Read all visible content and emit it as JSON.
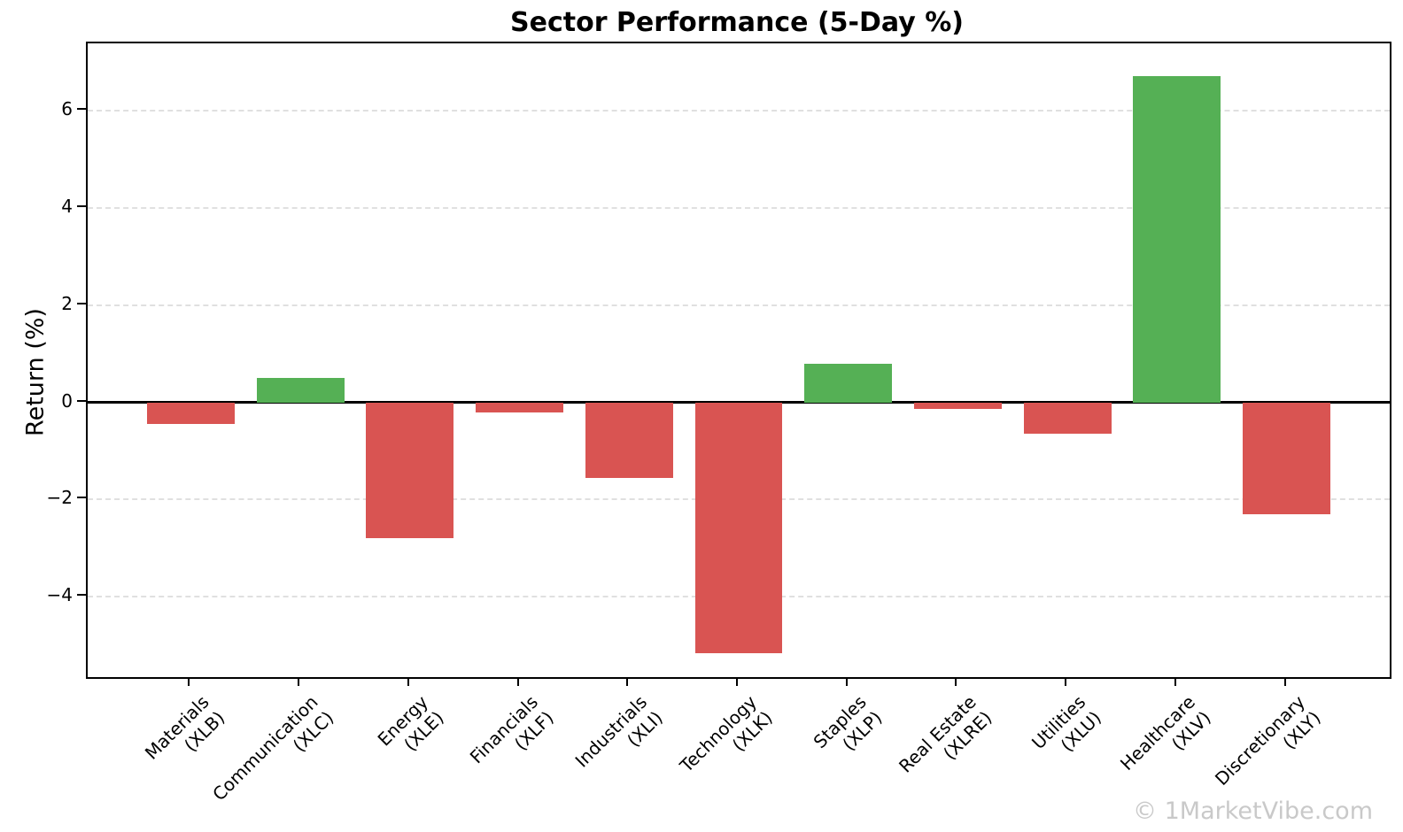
{
  "title": "Sector Performance (5-Day %)",
  "watermark": "© 1MarketVibe.com",
  "y_axis": {
    "label": "Return (%)"
  },
  "chart_data": {
    "type": "bar",
    "title": "Sector Performance (5-Day %)",
    "xlabel": "",
    "ylabel": "Return (%)",
    "categories": [
      {
        "name": "Materials",
        "ticker": "(XLB)"
      },
      {
        "name": "Communication",
        "ticker": "(XLC)"
      },
      {
        "name": "Energy",
        "ticker": "(XLE)"
      },
      {
        "name": "Financials",
        "ticker": "(XLF)"
      },
      {
        "name": "Industrials",
        "ticker": "(XLI)"
      },
      {
        "name": "Technology",
        "ticker": "(XLK)"
      },
      {
        "name": "Staples",
        "ticker": "(XLP)"
      },
      {
        "name": "Real Estate",
        "ticker": "(XLRE)"
      },
      {
        "name": "Utilities",
        "ticker": "(XLU)"
      },
      {
        "name": "Healthcare",
        "ticker": "(XLV)"
      },
      {
        "name": "Discretionary",
        "ticker": "(XLY)"
      }
    ],
    "values": [
      -0.45,
      0.5,
      -2.8,
      -0.2,
      -1.55,
      -5.15,
      0.8,
      -0.13,
      -0.65,
      6.7,
      -2.3
    ],
    "bar_colors": {
      "positive": "#55b055",
      "negative": "#d95452"
    },
    "ylim": [
      -5.65,
      7.38
    ],
    "yticks": [
      -4,
      -2,
      0,
      2,
      4,
      6
    ],
    "ytick_labels": [
      "−4",
      "−2",
      "0",
      "2",
      "4",
      "6"
    ],
    "grid": {
      "axis": "y",
      "style": "dashed",
      "color": "#e0e0e0"
    },
    "zero_line": true,
    "legend": "none"
  }
}
